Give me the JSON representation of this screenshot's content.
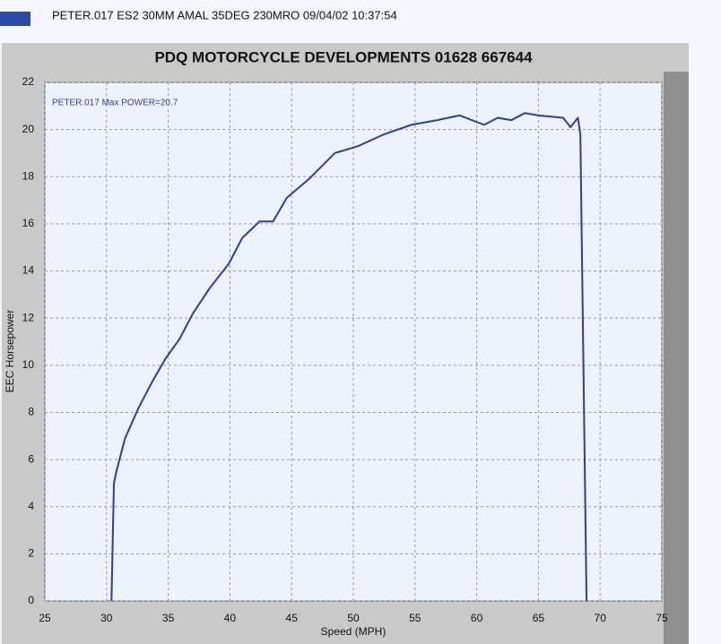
{
  "header": "PETER.017   ES2 30MM AMAL 35DEG 230MRO  09/04/02 10:37:54",
  "chart_data": {
    "type": "line",
    "title": "PDQ MOTORCYCLE DEVELOPMENTS  01628 667644",
    "annotation": "PETER.017  Max POWER=20.7",
    "x_label": "Speed (MPH)",
    "y_label": "EEC Horsepower",
    "x": [
      30.4,
      30.6,
      30.8,
      31.5,
      32.6,
      33.7,
      34.8,
      35.9,
      37.0,
      38.4,
      39.9,
      41.0,
      42.4,
      43.5,
      44.6,
      46.4,
      48.5,
      50.4,
      52.5,
      54.7,
      56.8,
      58.6,
      60.6,
      61.7,
      62.8,
      63.9,
      65.0,
      67.0,
      67.6,
      68.2,
      68.4,
      68.9
    ],
    "series": [
      {
        "name": "PETER.017",
        "color": "#2b3f9c",
        "values": [
          0,
          5.0,
          5.5,
          6.9,
          8.2,
          9.3,
          10.3,
          11.1,
          12.2,
          13.3,
          14.3,
          15.4,
          16.1,
          16.1,
          17.1,
          17.9,
          19.0,
          19.3,
          19.8,
          20.2,
          20.4,
          20.6,
          20.2,
          20.5,
          20.4,
          20.7,
          20.6,
          20.5,
          20.1,
          20.5,
          19.8,
          0
        ]
      }
    ],
    "xlim": [
      25,
      75
    ],
    "xticks": [
      25,
      30,
      35,
      40,
      45,
      50,
      55,
      60,
      65,
      70,
      75
    ],
    "ylim": [
      0,
      22
    ],
    "yticks": [
      0,
      2,
      4,
      6,
      8,
      10,
      12,
      14,
      16,
      18,
      20,
      22
    ],
    "grid": true
  }
}
